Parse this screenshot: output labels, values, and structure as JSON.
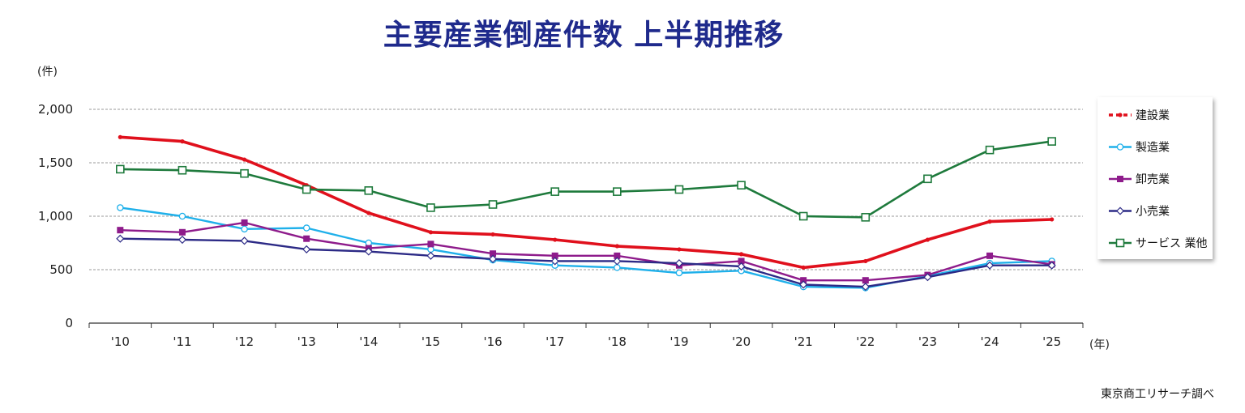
{
  "chart_data": {
    "type": "line",
    "title": "主要産業倒産件数 上半期推移",
    "y_unit": "(件)",
    "x_unit": "(年)",
    "categories": [
      "'10",
      "'11",
      "'12",
      "'13",
      "'14",
      "'15",
      "'16",
      "'17",
      "'18",
      "'19",
      "'20",
      "'21",
      "'22",
      "'23",
      "'24",
      "'25"
    ],
    "y_ticks": [
      "0",
      "500",
      "1,000",
      "1,500",
      "2,000"
    ],
    "ylim": [
      0,
      2000
    ],
    "grid": true,
    "legend_position": "right",
    "series": [
      {
        "name": "建設業",
        "color": "#e0101c",
        "marker": "dot",
        "values": [
          1740,
          1700,
          1530,
          1290,
          1030,
          850,
          830,
          780,
          720,
          690,
          645,
          520,
          580,
          780,
          950,
          970
        ]
      },
      {
        "name": "製造業",
        "color": "#1fb0ea",
        "marker": "circle",
        "values": [
          1080,
          1000,
          880,
          890,
          750,
          690,
          590,
          540,
          520,
          470,
          490,
          340,
          330,
          440,
          560,
          580
        ]
      },
      {
        "name": "卸売業",
        "color": "#8e1b8b",
        "marker": "square",
        "values": [
          870,
          850,
          940,
          790,
          700,
          740,
          650,
          630,
          630,
          540,
          580,
          400,
          400,
          450,
          630,
          550
        ]
      },
      {
        "name": "小売業",
        "color": "#2c2a86",
        "marker": "diamond",
        "values": [
          790,
          780,
          770,
          690,
          670,
          630,
          600,
          580,
          580,
          560,
          530,
          360,
          340,
          430,
          540,
          540
        ]
      },
      {
        "name": "サービス 業他",
        "color": "#1e7a3c",
        "marker": "hollow-square",
        "values": [
          1440,
          1430,
          1400,
          1250,
          1240,
          1080,
          1110,
          1230,
          1230,
          1250,
          1290,
          1000,
          990,
          1350,
          1620,
          1700
        ]
      }
    ]
  },
  "source": "東京商工リサーチ調べ"
}
